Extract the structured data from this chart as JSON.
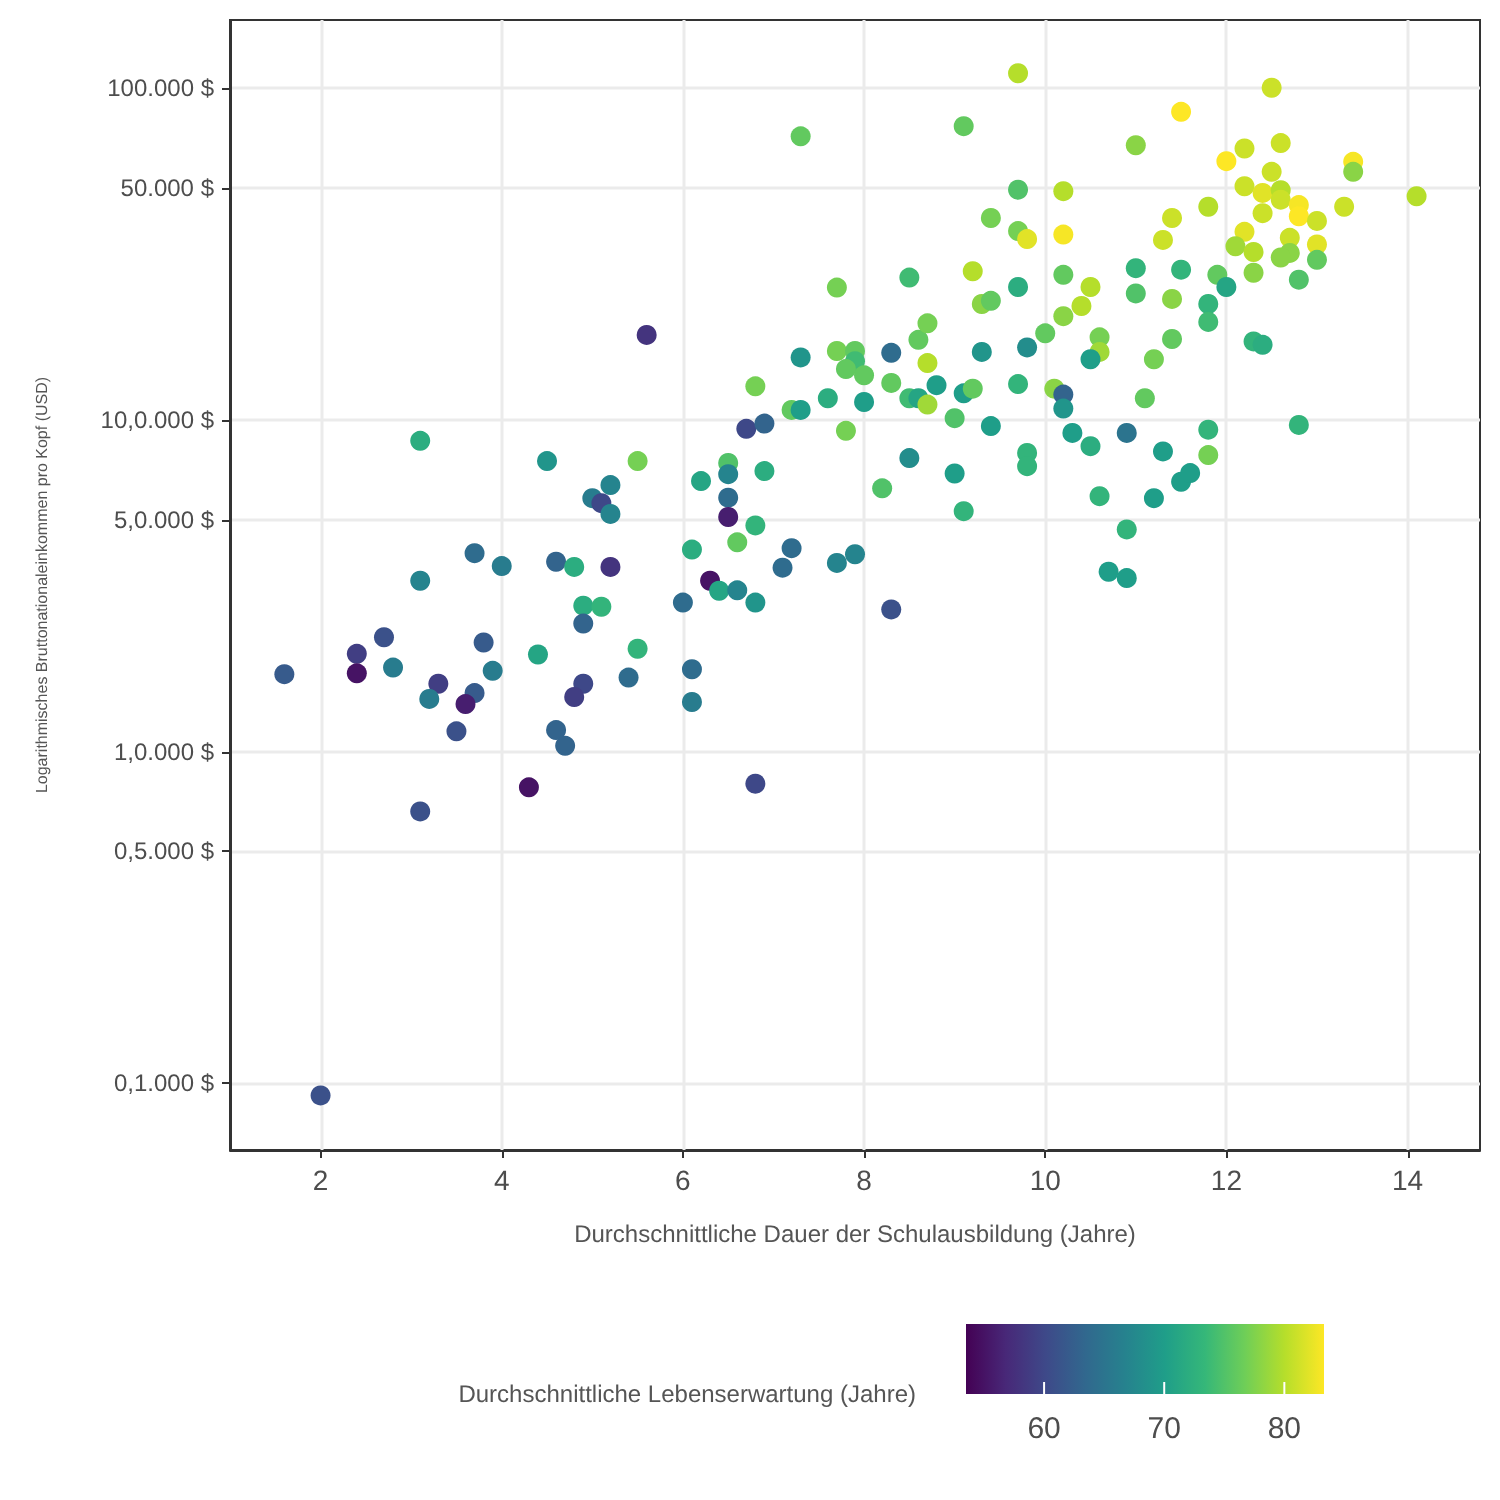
{
  "chart_data": {
    "type": "scatter",
    "xlabel": "Durchschnittliche Dauer der Schulausbildung (Jahre)",
    "ylabel": "Logarithmisches Bruttonationaleinkommen pro Kopf (USD)",
    "clabel": "Durchschnittliche Lebenserwartung (Jahre)",
    "log": "y",
    "grid": true,
    "marker": "circle",
    "xlim": [
      1.0,
      14.8
    ],
    "xticks": [
      2,
      4,
      6,
      8,
      10,
      12,
      14
    ],
    "ylim": [
      63,
      160000
    ],
    "yticks": [
      {
        "value": 100,
        "label": "0,1.000 $"
      },
      {
        "value": 500,
        "label": "0,5.000 $"
      },
      {
        "value": 1000,
        "label": "1,0.000 $"
      },
      {
        "value": 5000,
        "label": "5,0.000 $"
      },
      {
        "value": 10000,
        "label": "10,0.000 $"
      },
      {
        "value": 50000,
        "label": "50.000 $"
      },
      {
        "value": 100000,
        "label": "100.000 $"
      }
    ],
    "clim": [
      53.5,
      83.3
    ],
    "cticks": [
      60,
      70,
      80
    ],
    "series": [
      {
        "x": [
          5.6,
          3.1,
          4.5,
          5.5,
          5.2,
          5.0,
          5.1,
          5.2,
          3.7,
          4.0,
          4.6,
          4.8,
          5.2,
          3.1,
          4.9,
          5.1,
          4.9,
          2.7,
          2.4,
          3.8,
          4.4,
          5.5,
          1.6,
          2.4,
          2.8,
          3.9,
          3.3,
          3.7,
          3.2,
          3.6,
          4.9,
          4.8,
          5.4,
          3.5,
          4.6,
          4.7,
          4.3,
          3.1,
          2.0,
          7.3,
          7.7,
          7.9,
          7.9,
          7.8,
          8.0,
          8.3,
          8.6,
          8.7,
          8.7,
          9.3,
          6.8,
          7.2,
          7.3,
          7.6,
          8.0,
          7.8,
          8.3,
          8.5,
          8.6,
          8.7,
          8.8,
          9.1,
          9.2,
          9.0,
          9.4,
          6.7,
          6.9,
          6.2,
          6.5,
          6.5,
          6.9,
          6.5,
          6.5,
          6.8,
          6.6,
          6.1,
          7.2,
          7.1,
          7.7,
          7.9,
          6.3,
          6.4,
          6.6,
          6.8,
          6.0,
          8.3,
          6.1,
          6.1,
          6.8,
          9.7,
          9.1,
          7.3,
          11.5,
          11.0,
          9.7,
          10.2,
          9.4,
          9.7,
          9.8,
          10.2,
          11.4,
          11.3,
          8.5,
          7.7,
          9.2,
          9.7,
          10.2,
          11.0,
          11.5,
          11.0,
          11.4,
          9.3,
          9.4,
          10.5,
          10.4,
          10.2,
          10.0,
          10.6,
          10.6,
          10.5,
          9.8,
          11.2,
          11.4,
          10.1,
          10.2,
          10.2,
          9.7,
          11.1,
          10.3,
          10.9,
          10.5,
          11.3,
          9.8,
          9.8,
          8.5,
          9.0,
          8.2,
          10.6,
          11.2,
          11.5,
          11.6,
          9.1,
          10.9,
          12.5,
          12.2,
          12.6,
          12.0,
          13.4,
          13.4,
          12.5,
          12.2,
          12.4,
          12.6,
          12.6,
          12.8,
          12.8,
          13.0,
          13.3,
          14.1,
          11.8,
          12.4,
          12.2,
          12.1,
          12.3,
          12.7,
          13.0,
          12.7,
          12.6,
          13.0,
          12.3,
          12.8,
          11.9,
          12.0,
          11.8,
          11.8,
          12.3,
          12.4,
          11.8,
          12.8,
          11.8,
          10.7,
          10.9
        ],
        "values": [
          18000,
          8630,
          7500,
          7500,
          6350,
          5800,
          5600,
          5200,
          3960,
          3620,
          3730,
          3600,
          3600,
          3270,
          2750,
          2730,
          2430,
          2210,
          1970,
          2130,
          1960,
          2040,
          1710,
          1720,
          1790,
          1750,
          1600,
          1500,
          1440,
          1390,
          1600,
          1460,
          1670,
          1150,
          1160,
          1040,
          780,
          660,
          92,
          15400,
          16100,
          16100,
          15000,
          14200,
          13600,
          15900,
          17400,
          19500,
          14800,
          16000,
          12600,
          10700,
          10700,
          11600,
          11300,
          9250,
          12900,
          11600,
          11600,
          11100,
          12700,
          12000,
          12400,
          10100,
          9560,
          9380,
          9730,
          6530,
          7400,
          6850,
          7000,
          5820,
          5090,
          4800,
          4270,
          4060,
          4100,
          3580,
          3700,
          3930,
          3270,
          3050,
          3060,
          2810,
          2810,
          2680,
          1770,
          1410,
          800,
          110600,
          76600,
          71400,
          84600,
          67100,
          49300,
          48800,
          40500,
          37000,
          35000,
          36100,
          40500,
          34800,
          26800,
          25000,
          28000,
          25100,
          27300,
          28600,
          28300,
          24000,
          23100,
          22300,
          22800,
          25100,
          22000,
          20500,
          18200,
          17700,
          16000,
          15200,
          16500,
          15200,
          17500,
          12400,
          11900,
          10800,
          12800,
          11600,
          9120,
          9120,
          8320,
          8020,
          7940,
          7240,
          7660,
          6880,
          6210,
          5880,
          5800,
          6500,
          6900,
          5300,
          4670,
          100000,
          65600,
          68100,
          60100,
          59800,
          55800,
          55800,
          50500,
          48200,
          49100,
          46000,
          44300,
          41000,
          39700,
          43800,
          47100,
          43800,
          41900,
          36800,
          33300,
          32000,
          35300,
          33700,
          31800,
          30800,
          30300,
          27700,
          26400,
          27300,
          25100,
          22300,
          19700,
          17200,
          16800,
          9330,
          9640,
          7820,
          3480,
          3330
        ],
        "cvalues": [
          58,
          72,
          69,
          77,
          67,
          66,
          60,
          67,
          64,
          66,
          63,
          72,
          58,
          67,
          72,
          73,
          63,
          61,
          59,
          62,
          71,
          73,
          62,
          55,
          66,
          66,
          59,
          62,
          66,
          56,
          60,
          59,
          64,
          61,
          63,
          63,
          55,
          61,
          61,
          69,
          77,
          76,
          74,
          76,
          76,
          64,
          76,
          77,
          80,
          69,
          77,
          76,
          70,
          72,
          70,
          77,
          76,
          74,
          71,
          79,
          70,
          70,
          76,
          75,
          70,
          60,
          63,
          71,
          75,
          67,
          72,
          64,
          56,
          73,
          76,
          72,
          64,
          64,
          67,
          67,
          55,
          71,
          67,
          69,
          64,
          61,
          64,
          66,
          60,
          80,
          76,
          76,
          84,
          78,
          75,
          80,
          77,
          77,
          82,
          83,
          81,
          81,
          74,
          77,
          80,
          72,
          76,
          73,
          73,
          75,
          78,
          78,
          76,
          80,
          80,
          78,
          76,
          77,
          79,
          70,
          68,
          77,
          76,
          78,
          63,
          69,
          73,
          76,
          70,
          65,
          72,
          70,
          73,
          73,
          68,
          70,
          75,
          73,
          70,
          70,
          70,
          73,
          73,
          81,
          81,
          81,
          84,
          83,
          78,
          81,
          81,
          82,
          80,
          81,
          83,
          84,
          81,
          81,
          80,
          80,
          81,
          82,
          79,
          80,
          81,
          82,
          78,
          78,
          76,
          78,
          75,
          76,
          71,
          73,
          74,
          73,
          72,
          73,
          73,
          77,
          70,
          70
        ]
      }
    ]
  }
}
